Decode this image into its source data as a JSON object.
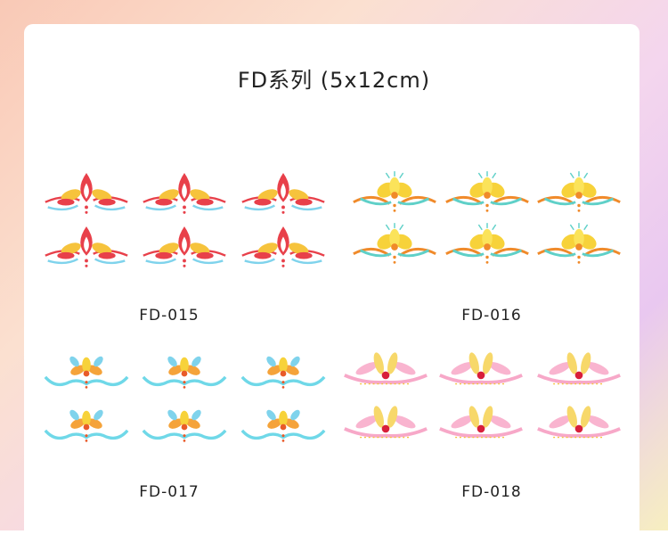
{
  "header": {
    "title": "FD系列 (5x12cm)"
  },
  "products": [
    {
      "code": "FD-015"
    },
    {
      "code": "FD-016"
    },
    {
      "code": "FD-017"
    },
    {
      "code": "FD-018"
    }
  ]
}
